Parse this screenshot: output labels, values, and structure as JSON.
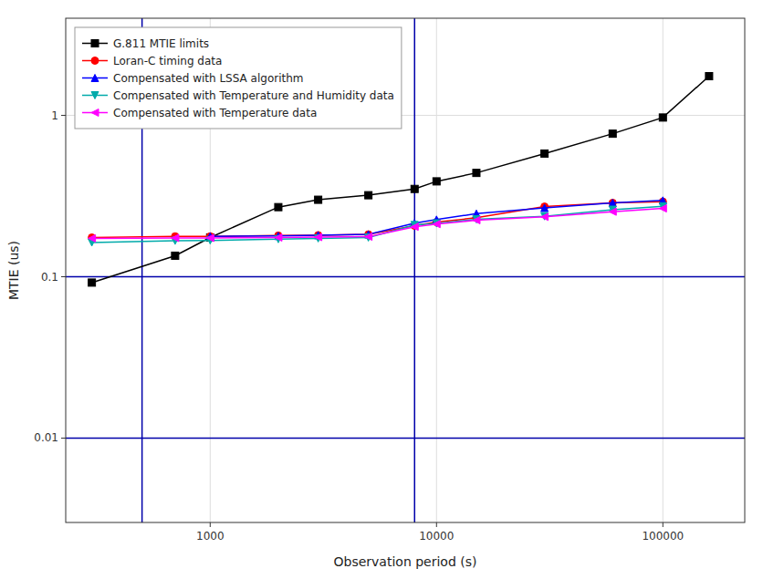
{
  "chart_data": {
    "type": "line",
    "xlabel": "Observation period (s)",
    "ylabel": "MTIE (us)",
    "log": true,
    "xlim": [
      230,
      230000
    ],
    "ylim": [
      0.003,
      4.0
    ],
    "xticks": [
      1000,
      10000,
      100000
    ],
    "yticks": [
      0.01,
      0.1,
      1
    ],
    "grid": true,
    "legend": "upper left",
    "reference_lines": {
      "x": [
        500,
        8000
      ],
      "y": [
        0.1,
        0.01
      ],
      "color": "#0000aa"
    },
    "series": [
      {
        "name": "G.811 MTIE limits",
        "color": "#000000",
        "marker": "square",
        "line_style": "solid",
        "x": [
          300,
          700,
          1000,
          2000,
          3000,
          5000,
          8000,
          10000,
          15000,
          30000,
          60000,
          100000,
          160000
        ],
        "values": [
          0.092,
          0.135,
          0.175,
          0.27,
          0.3,
          0.32,
          0.35,
          0.39,
          0.44,
          0.58,
          0.77,
          0.97,
          1.75
        ]
      },
      {
        "name": "Loran-C timing data",
        "color": "#ff0000",
        "marker": "circle",
        "line_style": "solid",
        "x": [
          300,
          700,
          1000,
          2000,
          3000,
          5000,
          8000,
          10000,
          15000,
          30000,
          60000,
          100000
        ],
        "values": [
          0.175,
          0.178,
          0.178,
          0.18,
          0.181,
          0.183,
          0.207,
          0.218,
          0.232,
          0.272,
          0.287,
          0.292
        ]
      },
      {
        "name": "Compensated with LSSA algorithm",
        "color": "#0000ff",
        "marker": "triangle-up",
        "line_style": "solid",
        "x": [
          1000,
          2000,
          3000,
          5000,
          8000,
          10000,
          15000,
          30000,
          60000,
          100000
        ],
        "values": [
          0.178,
          0.179,
          0.181,
          0.183,
          0.215,
          0.226,
          0.246,
          0.267,
          0.287,
          0.297
        ]
      },
      {
        "name": "Compensated with Temperature and Humidity data",
        "color": "#00aaaa",
        "marker": "triangle-down",
        "line_style": "solid",
        "x": [
          300,
          700,
          1000,
          2000,
          3000,
          5000,
          8000,
          10000,
          15000,
          30000,
          60000,
          100000
        ],
        "values": [
          0.163,
          0.167,
          0.168,
          0.171,
          0.173,
          0.175,
          0.209,
          0.214,
          0.227,
          0.237,
          0.26,
          0.273
        ]
      },
      {
        "name": "Compensated with Temperature data",
        "color": "#ff00ff",
        "marker": "triangle-left",
        "line_style": "solid",
        "x": [
          300,
          700,
          1000,
          2000,
          3000,
          5000,
          8000,
          10000,
          15000,
          30000,
          60000,
          100000
        ],
        "values": [
          0.173,
          0.174,
          0.174,
          0.175,
          0.176,
          0.177,
          0.204,
          0.212,
          0.224,
          0.235,
          0.253,
          0.265
        ]
      }
    ]
  }
}
